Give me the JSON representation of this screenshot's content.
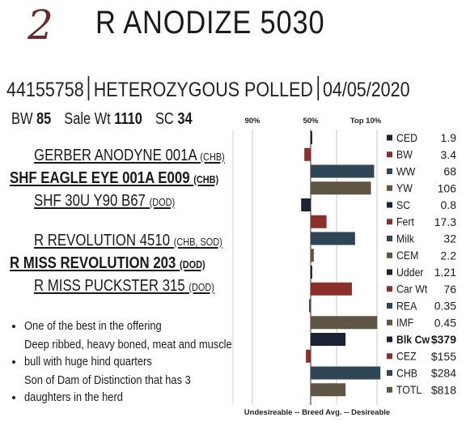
{
  "lot": "2",
  "title": "R ANODIZE 5030",
  "registration": "44155758",
  "polled": "HETEROZYGOUS POLLED",
  "birth_date": "04/05/2020",
  "stats": [
    {
      "label": "BW",
      "value": "85"
    },
    {
      "label": "Sale Wt",
      "value": "1110"
    },
    {
      "label": "SC",
      "value": "34"
    }
  ],
  "pedigree": [
    {
      "name": "GERBER ANODYNE 001A",
      "assoc": "(CHB)"
    },
    {
      "name": "SHF EAGLE EYE 001A E009",
      "assoc": "(CHB)"
    },
    {
      "name": "SHF 30U Y90 B67",
      "assoc": "(DOD)"
    },
    {
      "name": "R REVOLUTION 4510",
      "assoc": "(CHB, SOD)"
    },
    {
      "name": "R MISS REVOLUTION 203",
      "assoc": "(DOD)"
    },
    {
      "name": "R MISS PUCKSTER 315",
      "assoc": "(DOD)"
    }
  ],
  "comments": [
    "One of the best in the offering",
    "Deep ribbed, heavy boned, meat and muscle bull with huge hind quarters",
    "Son of Dam of Distinction that has 3 daughters in the herd"
  ],
  "colors": {
    "maroon": "#6d2a2c",
    "red": "#8b2f2a",
    "navy": "#1c2233",
    "teal": "#2f4656",
    "olive": "#5e5544"
  },
  "chart_data": {
    "type": "bar",
    "orientation": "horizontal",
    "top_labels": [
      "90%",
      "50%",
      "Top 10%"
    ],
    "bottom_label": "Undesireable -- Breed Avg. -- Desireable",
    "note": "Bars show percentile deviation from breed average; negative = toward undesirable (left), positive = toward desirable (right). Scale -50..+50.",
    "xlim": [
      -50,
      50
    ],
    "traits": [
      {
        "name": "CED",
        "value": "1.9",
        "deviation": 1,
        "color": "navy",
        "bold": false
      },
      {
        "name": "BW",
        "value": "3.4",
        "deviation": -4,
        "color": "red",
        "bold": false
      },
      {
        "name": "WW",
        "value": "68",
        "deviation": 40,
        "color": "teal",
        "bold": false
      },
      {
        "name": "YW",
        "value": "106",
        "deviation": 38,
        "color": "olive",
        "bold": false
      },
      {
        "name": "SC",
        "value": "0.8",
        "deviation": -6,
        "color": "navy",
        "bold": false
      },
      {
        "name": "Fert",
        "value": "17.3",
        "deviation": 10,
        "color": "red",
        "bold": false
      },
      {
        "name": "Milk",
        "value": "32",
        "deviation": 28,
        "color": "teal",
        "bold": false
      },
      {
        "name": "CEM",
        "value": "2.2",
        "deviation": 2,
        "color": "olive",
        "bold": false
      },
      {
        "name": "Udder",
        "value": "1.21",
        "deviation": 1,
        "color": "navy",
        "bold": false
      },
      {
        "name": "Car Wt",
        "value": "76",
        "deviation": 26,
        "color": "red",
        "bold": false
      },
      {
        "name": "REA",
        "value": "0.35",
        "deviation": -1,
        "color": "teal",
        "bold": false
      },
      {
        "name": "IMF",
        "value": "0.45",
        "deviation": 42,
        "color": "olive",
        "bold": false
      },
      {
        "name": "Blk Cw",
        "value": "$379",
        "deviation": 22,
        "color": "navy",
        "bold": true
      },
      {
        "name": "CEZ",
        "value": "$155",
        "deviation": -3,
        "color": "red",
        "bold": false
      },
      {
        "name": "CHB",
        "value": "$284",
        "deviation": 44,
        "color": "teal",
        "bold": false
      },
      {
        "name": "TOTL",
        "value": "$818",
        "deviation": 22,
        "color": "olive",
        "bold": false
      }
    ]
  }
}
